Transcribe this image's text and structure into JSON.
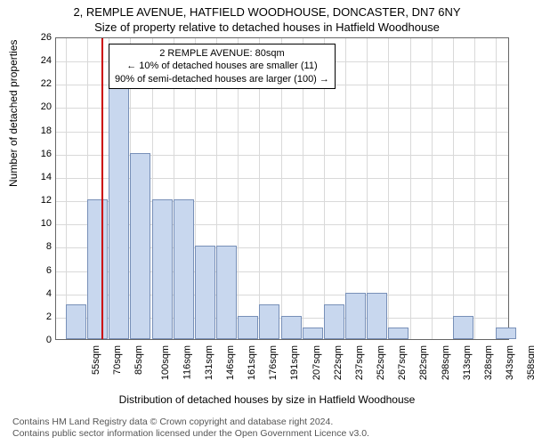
{
  "header": {
    "address": "2, REMPLE AVENUE, HATFIELD WOODHOUSE, DONCASTER, DN7 6NY",
    "subtitle": "Size of property relative to detached houses in Hatfield Woodhouse"
  },
  "chart": {
    "type": "histogram",
    "ylabel": "Number of detached properties",
    "xlabel": "Distribution of detached houses by size in Hatfield Woodhouse",
    "ylim": [
      0,
      26
    ],
    "ytick_step": 2,
    "yticks": [
      0,
      2,
      4,
      6,
      8,
      10,
      12,
      14,
      16,
      18,
      20,
      22,
      24,
      26
    ],
    "xtick_labels": [
      "55sqm",
      "70sqm",
      "85sqm",
      "100sqm",
      "116sqm",
      "131sqm",
      "146sqm",
      "161sqm",
      "176sqm",
      "191sqm",
      "207sqm",
      "222sqm",
      "237sqm",
      "252sqm",
      "267sqm",
      "282sqm",
      "298sqm",
      "313sqm",
      "328sqm",
      "343sqm",
      "358sqm"
    ],
    "xtick_values": [
      55,
      70,
      85,
      100,
      116,
      131,
      146,
      161,
      176,
      191,
      207,
      222,
      237,
      252,
      267,
      282,
      298,
      313,
      328,
      343,
      358
    ],
    "bar_anchor": "left",
    "bars": [
      {
        "x": 55,
        "value": 3
      },
      {
        "x": 70,
        "value": 12
      },
      {
        "x": 85,
        "value": 24
      },
      {
        "x": 100,
        "value": 16
      },
      {
        "x": 116,
        "value": 12
      },
      {
        "x": 131,
        "value": 12
      },
      {
        "x": 146,
        "value": 8
      },
      {
        "x": 161,
        "value": 8
      },
      {
        "x": 176,
        "value": 2
      },
      {
        "x": 191,
        "value": 3
      },
      {
        "x": 207,
        "value": 2
      },
      {
        "x": 222,
        "value": 1
      },
      {
        "x": 237,
        "value": 3
      },
      {
        "x": 252,
        "value": 4
      },
      {
        "x": 267,
        "value": 4
      },
      {
        "x": 282,
        "value": 1
      },
      {
        "x": 298,
        "value": 0
      },
      {
        "x": 313,
        "value": 0
      },
      {
        "x": 328,
        "value": 2
      },
      {
        "x": 343,
        "value": 0
      },
      {
        "x": 358,
        "value": 1
      }
    ],
    "xlim": [
      48,
      368
    ],
    "bar_fill": "#c8d7ee",
    "bar_border": "#7890b8",
    "grid_color": "#d9d9d9",
    "background_color": "#ffffff",
    "marker": {
      "x": 80,
      "color": "#cc0000"
    },
    "annotation": {
      "line1": "2 REMPLE AVENUE: 80sqm",
      "line2": "← 10% of detached houses are smaller (11)",
      "line3": "90% of semi-detached houses are larger (100) →",
      "border_color": "#000000",
      "background": "#ffffff",
      "fontsize": 11
    },
    "label_fontsize": 12,
    "tick_fontsize": 11
  },
  "footer": {
    "line1": "Contains HM Land Registry data © Crown copyright and database right 2024.",
    "line2": "Contains public sector information licensed under the Open Government Licence v3.0."
  }
}
